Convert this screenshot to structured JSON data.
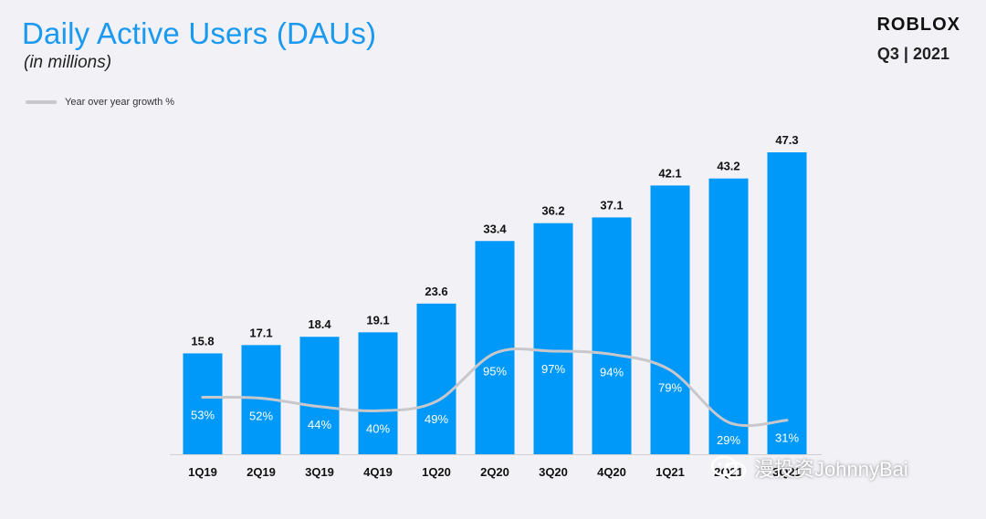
{
  "header": {
    "title": "Daily Active Users (DAUs)",
    "subtitle": "(in millions)",
    "brand": "ROBLOX",
    "period": "Q3 | 2021"
  },
  "watermark": {
    "text": "漫投资JohnnyBai",
    "icon": "wechat-icon"
  },
  "colors": {
    "bar": "#0099fa",
    "growth_line": "#c8c8cc",
    "title": "#1a99f0",
    "background": "#f1f1f6"
  },
  "chart_data": {
    "type": "bar",
    "title": "Daily Active Users (DAUs)",
    "ylabel": "(in millions)",
    "categories": [
      "1Q19",
      "2Q19",
      "3Q19",
      "4Q19",
      "1Q20",
      "2Q20",
      "3Q20",
      "4Q20",
      "1Q21",
      "2Q21",
      "3Q21"
    ],
    "values": [
      15.8,
      17.1,
      18.4,
      19.1,
      23.6,
      33.4,
      36.2,
      37.1,
      42.1,
      43.2,
      47.3
    ],
    "value_labels": [
      "15.8",
      "17.1",
      "18.4",
      "19.1",
      "23.6",
      "33.4",
      "36.2",
      "37.1",
      "42.1",
      "43.2",
      "47.3"
    ],
    "growth": [
      53,
      52,
      44,
      40,
      49,
      95,
      97,
      94,
      79,
      29,
      31
    ],
    "growth_labels": [
      "53%",
      "52%",
      "44%",
      "40%",
      "49%",
      "95%",
      "97%",
      "94%",
      "79%",
      "29%",
      "31%"
    ],
    "legend": {
      "growth_label": "Year over year growth %",
      "placement": "top-left"
    },
    "ylim": [
      0,
      47.3
    ],
    "grid": false
  }
}
